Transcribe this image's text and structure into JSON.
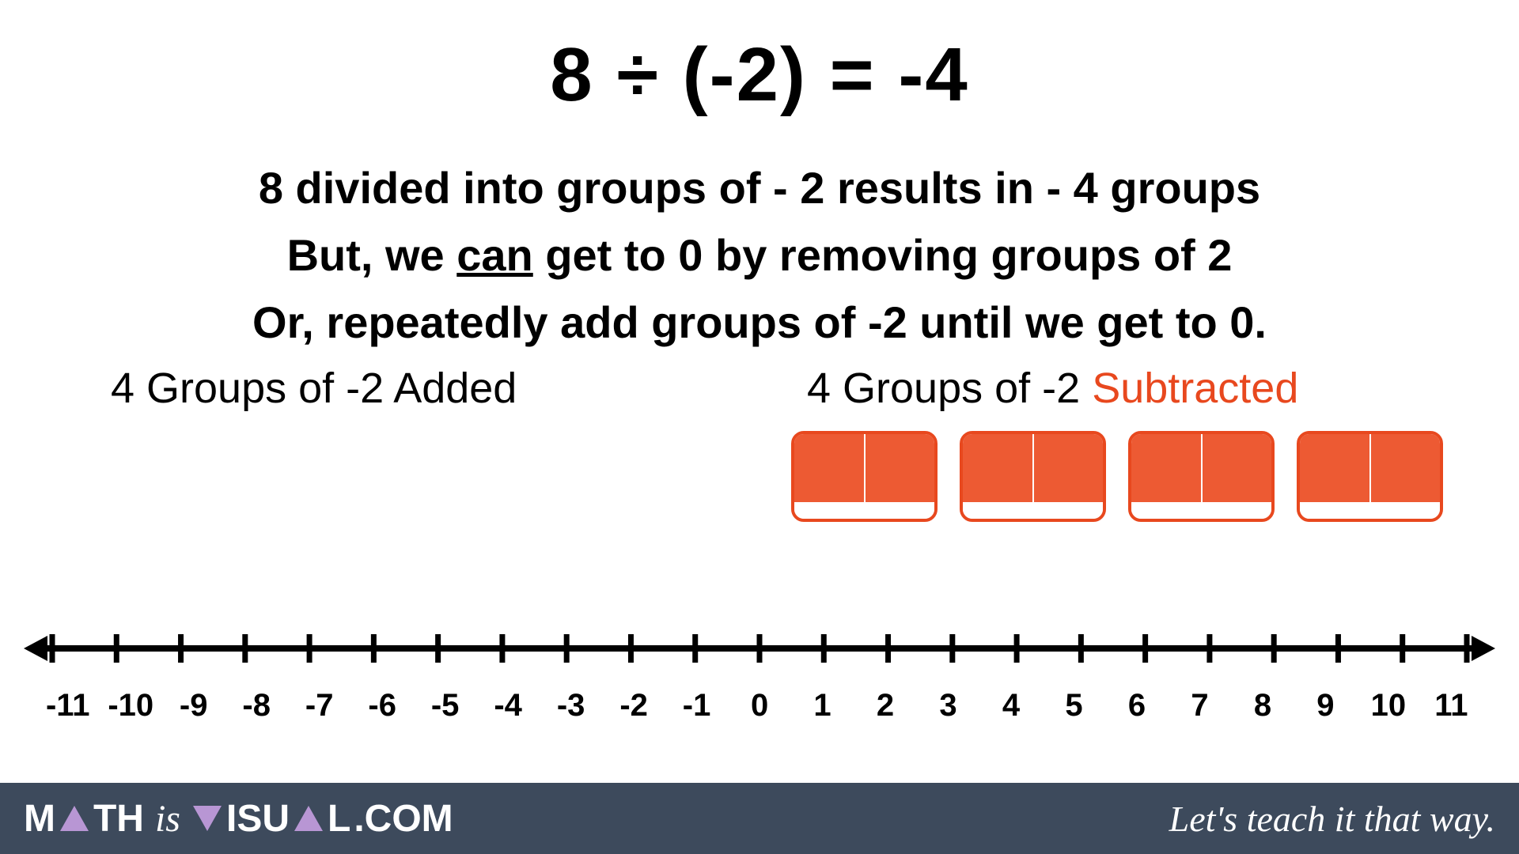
{
  "equation": "8 ÷ (-2) = -4",
  "line1": "8  divided into groups of  - 2  results in  - 4  groups",
  "line2_pre": "But, we ",
  "line2_underlined": "can",
  "line2_post": " get to 0 by removing groups of  2",
  "line3": "Or, repeatedly add groups of -2 until we get to 0.",
  "sub_left": "4 Groups of -2 Added",
  "sub_right_pre": "4 Groups of -2 ",
  "sub_right_orange": "Subtracted",
  "tiles": {
    "count": 4,
    "color": "#ed5a33",
    "border": "#e8481e"
  },
  "numberline": {
    "min": -11,
    "max": 11,
    "labels": [
      "-11",
      "-10",
      "-9",
      "-8",
      "-7",
      "-6",
      "-5",
      "-4",
      "-3",
      "-2",
      "-1",
      "0",
      "1",
      "2",
      "3",
      "4",
      "5",
      "6",
      "7",
      "8",
      "9",
      "10",
      "11"
    ],
    "stroke": "#000000",
    "stroke_width": 8,
    "tick_height": 36
  },
  "footer": {
    "bg": "#3d4a5c",
    "triangle_color": "#b896d4",
    "brand_m": "M",
    "brand_th": "TH",
    "brand_is": "is",
    "brand_isu": "ISU",
    "brand_l": "L",
    "brand_com": ".COM",
    "tagline": "Let's teach it that way."
  },
  "colors": {
    "orange": "#e8481e",
    "text": "#000000"
  }
}
